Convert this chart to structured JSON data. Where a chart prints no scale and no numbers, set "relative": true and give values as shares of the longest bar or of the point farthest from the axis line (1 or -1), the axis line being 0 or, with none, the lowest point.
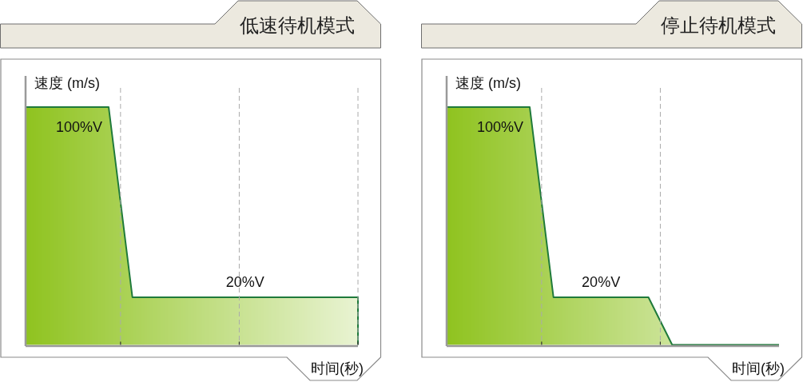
{
  "chart_data": [
    {
      "type": "area",
      "title": "低速待机模式",
      "ylabel": "速度 (m/s)",
      "xlabel": "时间(秒)",
      "relative": true,
      "categories": [
        null,
        null,
        null,
        null,
        null,
        null,
        null,
        null,
        null,
        null,
        null,
        null,
        null,
        null,
        null,
        null,
        null,
        null,
        null,
        null,
        null,
        null,
        null,
        null,
        null,
        null,
        null,
        null,
        null
      ],
      "series": [
        {
          "color": "#8fc31f",
          "values": [
            1,
            1,
            1,
            1,
            1,
            1,
            1,
            1,
            0.6,
            0.2,
            0.2,
            0.2,
            0.2,
            0.2,
            0.2,
            0.2,
            0.2,
            0.2,
            0.2,
            0.2,
            0.2,
            0.2,
            0.2,
            0.2,
            0.2,
            0.2,
            0.2,
            0.2,
            0.2
          ]
        }
      ],
      "annotations": [
        {
          "text": "100%V",
          "y": 1
        },
        {
          "text": "20%V",
          "y": 0.2
        }
      ]
    },
    {
      "type": "area",
      "title": "停止待机模式",
      "ylabel": "速度 (m/s)",
      "xlabel": "时间(秒)",
      "relative": true,
      "categories": [
        null,
        null,
        null,
        null,
        null,
        null,
        null,
        null,
        null,
        null,
        null,
        null,
        null,
        null,
        null,
        null,
        null,
        null,
        null,
        null,
        null,
        null,
        null,
        null,
        null,
        null,
        null,
        null,
        null
      ],
      "series": [
        {
          "color": "#8fc31f",
          "values": [
            1,
            1,
            1,
            1,
            1,
            1,
            1,
            1,
            0.6,
            0.2,
            0.2,
            0.2,
            0.2,
            0.2,
            0.2,
            0.2,
            0.2,
            0.2,
            0.1,
            0,
            0,
            0,
            0,
            0,
            0,
            0,
            0,
            0,
            0
          ]
        }
      ],
      "annotations": [
        {
          "text": "100%V",
          "y": 1
        },
        {
          "text": "20%V",
          "y": 0.2
        }
      ]
    }
  ]
}
